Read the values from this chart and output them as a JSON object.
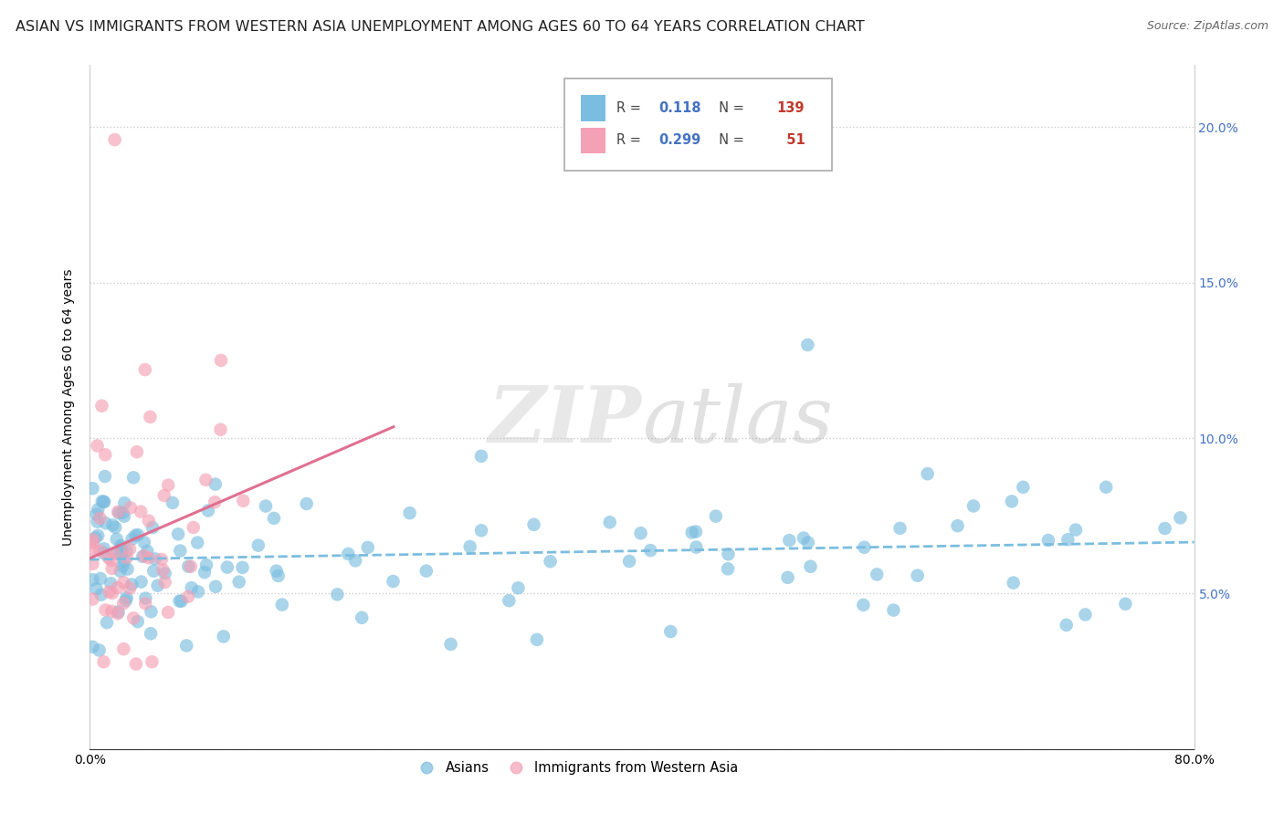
{
  "title": "ASIAN VS IMMIGRANTS FROM WESTERN ASIA UNEMPLOYMENT AMONG AGES 60 TO 64 YEARS CORRELATION CHART",
  "source": "Source: ZipAtlas.com",
  "ylabel": "Unemployment Among Ages 60 to 64 years",
  "xlim": [
    0.0,
    0.8
  ],
  "ylim": [
    0.0,
    0.22
  ],
  "xtick_positions": [
    0.0,
    0.1,
    0.2,
    0.3,
    0.4,
    0.5,
    0.6,
    0.7,
    0.8
  ],
  "xticklabels": [
    "0.0%",
    "",
    "",
    "",
    "",
    "",
    "",
    "",
    "80.0%"
  ],
  "ytick_positions": [
    0.0,
    0.05,
    0.1,
    0.15,
    0.2
  ],
  "yticklabels_right": [
    "",
    "5.0%",
    "10.0%",
    "15.0%",
    "20.0%"
  ],
  "legend_R1": "0.118",
  "legend_N1": "139",
  "legend_R2": "0.299",
  "legend_N2": "51",
  "color_asian": "#7bbde0",
  "color_western": "#f4a0b5",
  "color_blue_text": "#4472c4",
  "color_red_text": "#c0392b",
  "watermark": "ZIPatlas",
  "background_color": "#ffffff",
  "title_fontsize": 11.5,
  "axis_label_fontsize": 10,
  "tick_fontsize": 10,
  "source_fontsize": 9
}
